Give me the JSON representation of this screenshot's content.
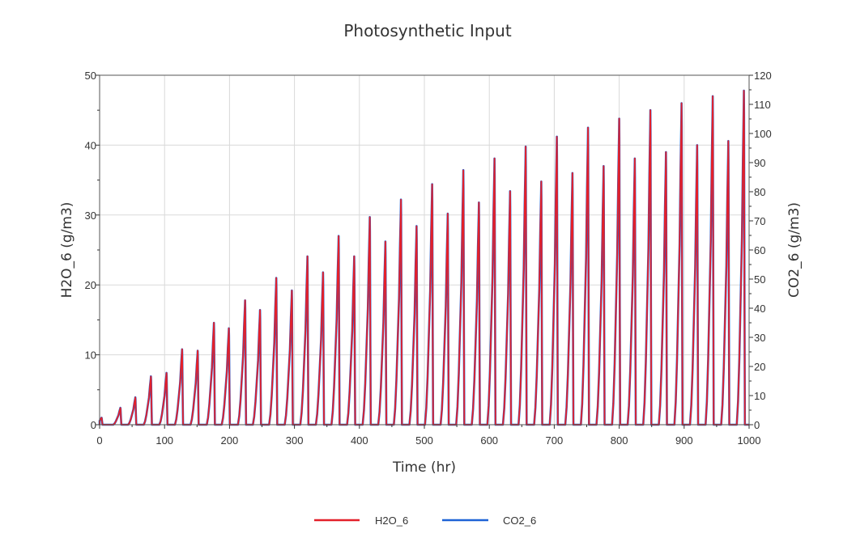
{
  "chart_data": {
    "type": "line",
    "title": "Photosynthetic Input",
    "xlabel": "Time (hr)",
    "ylabel_left": "H2O_6 (g/m3)",
    "ylabel_right": "CO2_6 (g/m3)",
    "xlim": [
      0,
      1000
    ],
    "ylim_left": [
      0,
      50
    ],
    "ylim_right": [
      0,
      120
    ],
    "x_ticks": [
      0,
      100,
      200,
      300,
      400,
      500,
      600,
      700,
      800,
      900,
      1000
    ],
    "y_left_ticks": [
      0,
      10,
      20,
      30,
      40,
      50
    ],
    "y_right_ticks": [
      0,
      10,
      20,
      30,
      40,
      50,
      60,
      70,
      80,
      90,
      100,
      110,
      120
    ],
    "grid": true,
    "legend_position": "bottom",
    "series": [
      {
        "name": "H2O_6",
        "axis": "left",
        "color": "#e3202a",
        "peaks": [
          {
            "t": 3,
            "v": 1.0
          },
          {
            "t": 32,
            "v": 2.4
          },
          {
            "t": 55,
            "v": 3.9
          },
          {
            "t": 79,
            "v": 6.9
          },
          {
            "t": 103,
            "v": 7.4
          },
          {
            "t": 127,
            "v": 10.8
          },
          {
            "t": 151,
            "v": 10.6
          },
          {
            "t": 176,
            "v": 14.6
          },
          {
            "t": 199,
            "v": 13.8
          },
          {
            "t": 224,
            "v": 17.8
          },
          {
            "t": 247,
            "v": 16.4
          },
          {
            "t": 272,
            "v": 21.0
          },
          {
            "t": 296,
            "v": 19.2
          },
          {
            "t": 320,
            "v": 24.1
          },
          {
            "t": 344,
            "v": 21.8
          },
          {
            "t": 368,
            "v": 27.0
          },
          {
            "t": 392,
            "v": 24.1
          },
          {
            "t": 416,
            "v": 29.7
          },
          {
            "t": 440,
            "v": 26.2
          },
          {
            "t": 464,
            "v": 32.2
          },
          {
            "t": 488,
            "v": 28.4
          },
          {
            "t": 512,
            "v": 34.4
          },
          {
            "t": 536,
            "v": 30.2
          },
          {
            "t": 560,
            "v": 36.4
          },
          {
            "t": 584,
            "v": 31.8
          },
          {
            "t": 608,
            "v": 38.1
          },
          {
            "t": 632,
            "v": 33.4
          },
          {
            "t": 656,
            "v": 39.8
          },
          {
            "t": 680,
            "v": 34.8
          },
          {
            "t": 704,
            "v": 41.2
          },
          {
            "t": 728,
            "v": 36.0
          },
          {
            "t": 752,
            "v": 42.5
          },
          {
            "t": 776,
            "v": 37.0
          },
          {
            "t": 800,
            "v": 43.8
          },
          {
            "t": 824,
            "v": 38.1
          },
          {
            "t": 848,
            "v": 45.0
          },
          {
            "t": 872,
            "v": 39.0
          },
          {
            "t": 896,
            "v": 46.0
          },
          {
            "t": 920,
            "v": 40.0
          },
          {
            "t": 944,
            "v": 47.0
          },
          {
            "t": 968,
            "v": 40.6
          },
          {
            "t": 992,
            "v": 47.8
          }
        ]
      },
      {
        "name": "CO2_6",
        "axis": "right",
        "color": "#1e63d6",
        "peaks": [
          {
            "t": 3,
            "v": 2.4
          },
          {
            "t": 32,
            "v": 5.8
          },
          {
            "t": 55,
            "v": 9.4
          },
          {
            "t": 79,
            "v": 16.6
          },
          {
            "t": 103,
            "v": 17.8
          },
          {
            "t": 127,
            "v": 25.9
          },
          {
            "t": 151,
            "v": 25.4
          },
          {
            "t": 176,
            "v": 35.0
          },
          {
            "t": 199,
            "v": 33.1
          },
          {
            "t": 224,
            "v": 42.7
          },
          {
            "t": 247,
            "v": 39.4
          },
          {
            "t": 272,
            "v": 50.4
          },
          {
            "t": 296,
            "v": 46.1
          },
          {
            "t": 320,
            "v": 57.8
          },
          {
            "t": 344,
            "v": 52.3
          },
          {
            "t": 368,
            "v": 64.8
          },
          {
            "t": 392,
            "v": 57.8
          },
          {
            "t": 416,
            "v": 71.3
          },
          {
            "t": 440,
            "v": 62.9
          },
          {
            "t": 464,
            "v": 77.3
          },
          {
            "t": 488,
            "v": 68.2
          },
          {
            "t": 512,
            "v": 82.6
          },
          {
            "t": 536,
            "v": 72.5
          },
          {
            "t": 560,
            "v": 87.4
          },
          {
            "t": 584,
            "v": 76.3
          },
          {
            "t": 608,
            "v": 91.4
          },
          {
            "t": 632,
            "v": 80.2
          },
          {
            "t": 656,
            "v": 95.5
          },
          {
            "t": 680,
            "v": 83.5
          },
          {
            "t": 704,
            "v": 98.9
          },
          {
            "t": 728,
            "v": 86.4
          },
          {
            "t": 752,
            "v": 102.0
          },
          {
            "t": 776,
            "v": 88.8
          },
          {
            "t": 800,
            "v": 105.1
          },
          {
            "t": 824,
            "v": 91.4
          },
          {
            "t": 848,
            "v": 108.0
          },
          {
            "t": 872,
            "v": 93.6
          },
          {
            "t": 896,
            "v": 110.4
          },
          {
            "t": 920,
            "v": 96.0
          },
          {
            "t": 944,
            "v": 112.8
          },
          {
            "t": 968,
            "v": 97.4
          },
          {
            "t": 992,
            "v": 114.7
          }
        ]
      }
    ]
  }
}
